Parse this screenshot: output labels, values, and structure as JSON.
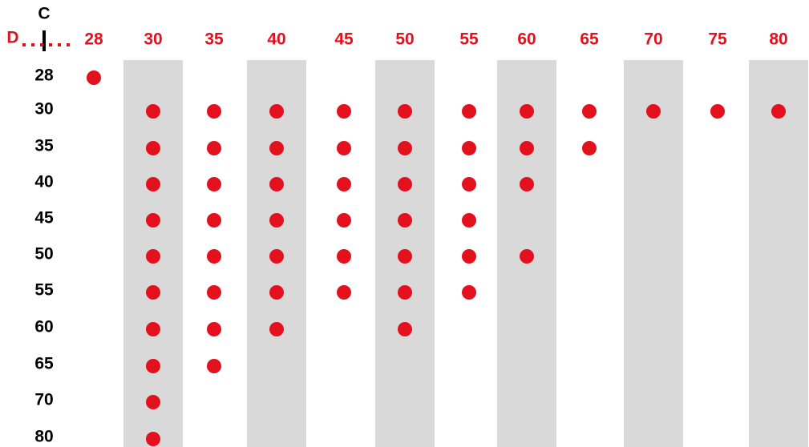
{
  "header": {
    "row_axis": "C",
    "column_axis": "D"
  },
  "columns": [
    "28",
    "30",
    "35",
    "40",
    "45",
    "50",
    "55",
    "60",
    "65",
    "70",
    "75",
    "80"
  ],
  "rows": [
    {
      "label": "28",
      "cells": [
        true,
        false,
        false,
        false,
        false,
        false,
        false,
        false,
        false,
        false,
        false,
        false
      ]
    },
    {
      "label": "30",
      "cells": [
        false,
        true,
        true,
        true,
        true,
        true,
        true,
        true,
        true,
        true,
        true,
        true
      ]
    },
    {
      "label": "35",
      "cells": [
        false,
        true,
        true,
        true,
        true,
        true,
        true,
        true,
        true,
        false,
        false,
        false
      ]
    },
    {
      "label": "40",
      "cells": [
        false,
        true,
        true,
        true,
        true,
        true,
        true,
        true,
        false,
        false,
        false,
        false
      ]
    },
    {
      "label": "45",
      "cells": [
        false,
        true,
        true,
        true,
        true,
        true,
        true,
        false,
        false,
        false,
        false,
        false
      ]
    },
    {
      "label": "50",
      "cells": [
        false,
        true,
        true,
        true,
        true,
        true,
        true,
        true,
        false,
        false,
        false,
        false
      ]
    },
    {
      "label": "55",
      "cells": [
        false,
        true,
        true,
        true,
        true,
        true,
        true,
        false,
        false,
        false,
        false,
        false
      ]
    },
    {
      "label": "60",
      "cells": [
        false,
        true,
        true,
        true,
        false,
        true,
        false,
        false,
        false,
        false,
        false,
        false
      ]
    },
    {
      "label": "65",
      "cells": [
        false,
        true,
        true,
        false,
        false,
        false,
        false,
        false,
        false,
        false,
        false,
        false
      ]
    },
    {
      "label": "70",
      "cells": [
        false,
        true,
        false,
        false,
        false,
        false,
        false,
        false,
        false,
        false,
        false,
        false
      ]
    },
    {
      "label": "80",
      "cells": [
        false,
        true,
        false,
        false,
        false,
        false,
        false,
        false,
        false,
        false,
        false,
        false
      ]
    }
  ]
}
